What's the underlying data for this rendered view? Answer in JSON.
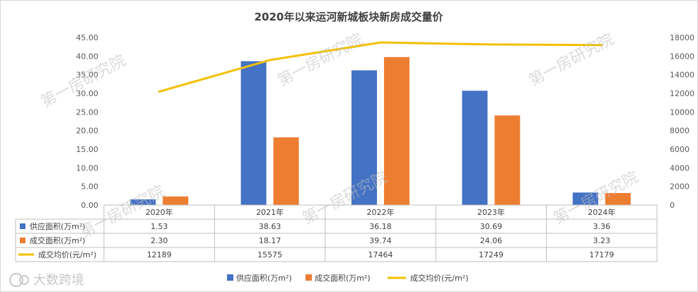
{
  "chart_data": {
    "type": "bar",
    "title": "2020年以来运河新城板块新房成交量价",
    "categories": [
      "2020年",
      "2021年",
      "2022年",
      "2023年",
      "2024年"
    ],
    "series": [
      {
        "name": "供应面积(万m²)",
        "type": "bar",
        "axis": "left",
        "color": "#4472c4",
        "values": [
          1.53,
          38.63,
          36.18,
          30.69,
          3.36
        ],
        "labels": [
          "1.53",
          "38.63",
          "36.18",
          "30.69",
          "3.36"
        ]
      },
      {
        "name": "成交面积(万m²)",
        "type": "bar",
        "axis": "left",
        "color": "#ed7d31",
        "values": [
          2.3,
          18.17,
          39.74,
          24.06,
          3.23
        ],
        "labels": [
          "2.30",
          "18.17",
          "39.74",
          "24.06",
          "3.23"
        ]
      },
      {
        "name": "成交均价(元/m²)",
        "type": "line",
        "axis": "right",
        "color": "#f2c000",
        "values": [
          12189,
          15575,
          17464,
          17249,
          17179
        ],
        "labels": [
          "12189",
          "15575",
          "17464",
          "17249",
          "17179"
        ]
      }
    ],
    "y_left": {
      "min": 0,
      "max": 45,
      "ticks": [
        "0.00",
        "5.00",
        "10.00",
        "15.00",
        "20.00",
        "25.00",
        "30.00",
        "35.00",
        "40.00",
        "45.00"
      ]
    },
    "y_right": {
      "min": 0,
      "max": 18000,
      "ticks": [
        "0",
        "2000",
        "4000",
        "6000",
        "8000",
        "10000",
        "12000",
        "14000",
        "16000",
        "18000"
      ]
    },
    "grid": false,
    "legend": "bottom",
    "data_table": true
  },
  "watermark": "第一房研究院",
  "logo_text": "大数跨境"
}
